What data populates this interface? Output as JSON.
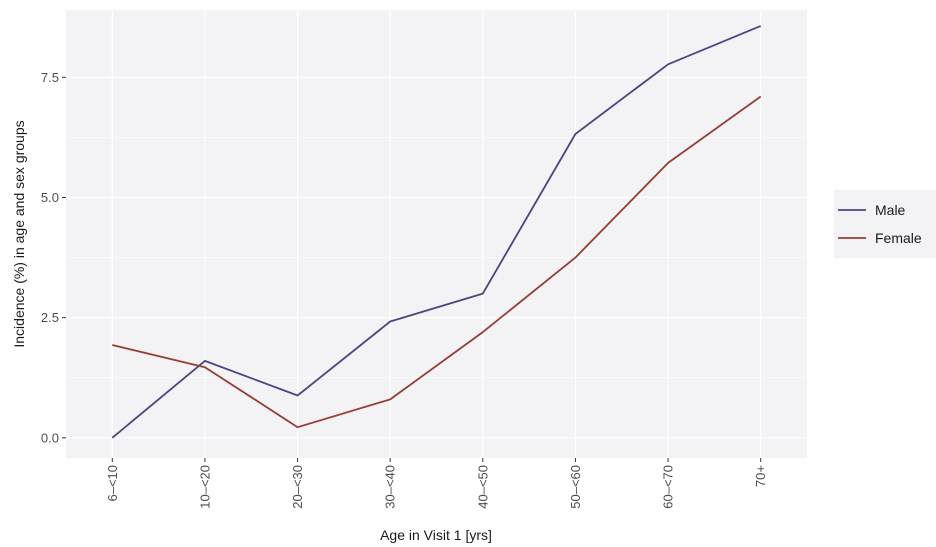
{
  "chart_data": {
    "type": "line",
    "xlabel": "Age in Visit 1 [yrs]",
    "ylabel": "Incidence (%) in age and sex groups",
    "categories": [
      "6–<10",
      "10–<20",
      "20–<30",
      "30–<40",
      "40–<50",
      "50–<60",
      "60–<70",
      "70+"
    ],
    "ylim": [
      -0.42,
      8.9
    ],
    "yticks": [
      0.0,
      2.5,
      5.0,
      7.5
    ],
    "ytick_labels": [
      "0.0",
      "2.5",
      "5.0",
      "7.5"
    ],
    "grid": true,
    "legend_position": "right",
    "series": [
      {
        "name": "Male",
        "color": "#4b4682",
        "values": [
          0.0,
          1.6,
          0.88,
          2.42,
          3.0,
          6.32,
          7.77,
          8.57
        ]
      },
      {
        "name": "Female",
        "color": "#943f35",
        "values": [
          1.93,
          1.47,
          0.22,
          0.8,
          2.2,
          3.75,
          5.72,
          7.1
        ]
      }
    ]
  }
}
